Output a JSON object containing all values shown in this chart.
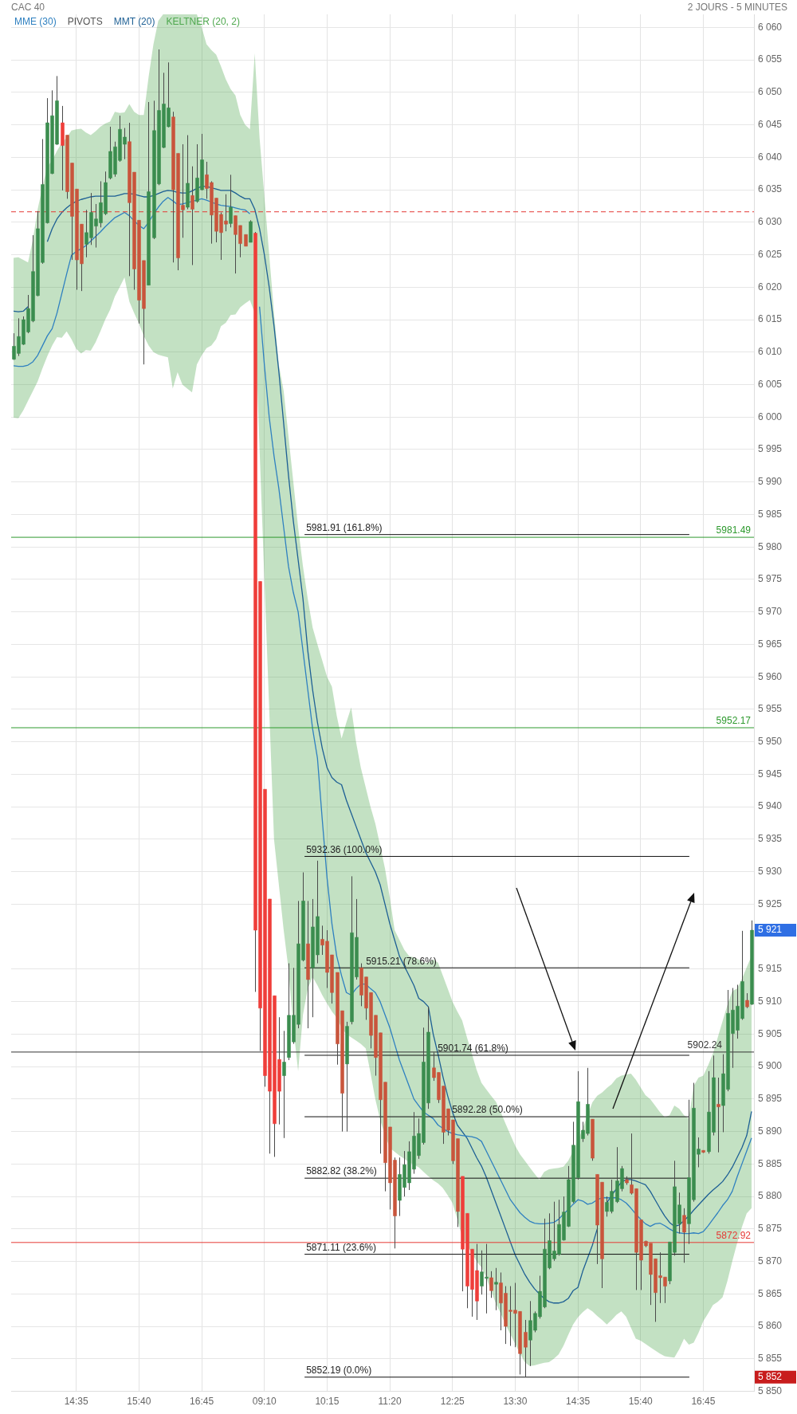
{
  "chart_data": {
    "type": "candlestick",
    "title": "CAC 40",
    "subtitle": "2 JOURS - 5 MINUTES",
    "categories": [
      null,
      null,
      null,
      null,
      null,
      null,
      null,
      null,
      null,
      null,
      null,
      null,
      null,
      "14:35",
      null,
      null,
      null,
      null,
      null,
      null,
      null,
      null,
      null,
      null,
      null,
      null,
      "15:40",
      null,
      null,
      null,
      null,
      null,
      null,
      null,
      null,
      null,
      null,
      null,
      null,
      "16:45",
      null,
      null,
      null,
      null,
      null,
      null,
      null,
      null,
      null,
      null,
      null,
      null,
      "09:10",
      null,
      null,
      null,
      null,
      null,
      null,
      null,
      null,
      null,
      null,
      null,
      null,
      "10:15",
      null,
      null,
      null,
      null,
      null,
      null,
      null,
      null,
      null,
      null,
      null,
      null,
      "11:20",
      null,
      null,
      null,
      null,
      null,
      null,
      null,
      null,
      null,
      null,
      null,
      null,
      "12:25",
      null,
      null,
      null,
      null,
      null,
      null,
      null,
      null,
      null,
      null,
      null,
      null,
      "13:30",
      null,
      null,
      null,
      null,
      null,
      null,
      null,
      null,
      null,
      null,
      null,
      null,
      "14:35",
      null,
      null,
      null,
      null,
      null,
      null,
      null,
      null,
      null,
      null,
      null,
      null,
      "15:40",
      null,
      null,
      null,
      null,
      null,
      null,
      null,
      null,
      null,
      null,
      null,
      null,
      "16:45",
      null,
      null,
      null,
      null,
      null,
      null,
      null,
      null,
      null,
      null
    ],
    "ohlc": [
      [
        6008.9,
        6012.9,
        6008.8,
        6010.9
      ],
      [
        6009.8,
        6015.2,
        6009.4,
        6012.4
      ],
      [
        6011.2,
        6015.5,
        6011.1,
        6015.0
      ],
      [
        6013.1,
        6018.8,
        6012.9,
        6016.7
      ],
      [
        6014.8,
        6028.0,
        6014.6,
        6022.4
      ],
      [
        6018.7,
        6031.7,
        6018.6,
        6029.0
      ],
      [
        6023.8,
        6042.8,
        6023.6,
        6035.8
      ],
      [
        6029.9,
        6049.1,
        6029.8,
        6045.3
      ],
      [
        6037.5,
        6050.3,
        6037.4,
        6046.4
      ],
      [
        6042.0,
        6052.5,
        6041.9,
        6048.7
      ],
      [
        6045.3,
        6047.9,
        6034.9,
        6041.8
      ],
      [
        6043.4,
        6043.4,
        6033.6,
        6034.7
      ],
      [
        6039.1,
        6039.1,
        6024.2,
        6030.9
      ],
      [
        6035.1,
        6035.1,
        6019.6,
        6024.2
      ],
      [
        6029.7,
        6029.7,
        6019.4,
        6023.6
      ],
      [
        6026.6,
        6031.9,
        6024.6,
        6028.4
      ],
      [
        6027.6,
        6034.5,
        6026.5,
        6031.5
      ],
      [
        6029.4,
        6032.8,
        6026.1,
        6030.5
      ],
      [
        6029.9,
        6036.3,
        6029.2,
        6033.0
      ],
      [
        6031.3,
        6037.8,
        6031.1,
        6036.1
      ],
      [
        6036.8,
        6044.7,
        6036.6,
        6040.9
      ],
      [
        6037.4,
        6042.4,
        6037.0,
        6041.6
      ],
      [
        6039.5,
        6046.4,
        6039.3,
        6044.3
      ],
      [
        6042.0,
        6044.5,
        6039.7,
        6043.1
      ],
      [
        6042.4,
        6045.3,
        6021.7,
        6033.0
      ],
      [
        6037.7,
        6037.7,
        6019.6,
        6022.8
      ],
      [
        6030.3,
        6030.3,
        6014.4,
        6018.0
      ],
      [
        6024.1,
        6024.1,
        6008.1,
        6016.7
      ],
      [
        6020.3,
        6048.5,
        6020.3,
        6034.7
      ],
      [
        6027.6,
        6048.7,
        6027.4,
        6044.1
      ],
      [
        6035.9,
        6056.6,
        6035.7,
        6047.2
      ],
      [
        6041.5,
        6053.0,
        6041.4,
        6048.2
      ],
      [
        6044.7,
        6054.6,
        6044.6,
        6047.6
      ],
      [
        6046.2,
        6047.0,
        6023.8,
        6035.0
      ],
      [
        6040.6,
        6040.6,
        6022.6,
        6024.5
      ],
      [
        6032.6,
        6042.0,
        6027.6,
        6031.9
      ],
      [
        6032.3,
        6043.4,
        6032.0,
        6036.0
      ],
      [
        6034.1,
        6038.6,
        6023.4,
        6032.0
      ],
      [
        6033.2,
        6042.0,
        6033.0,
        6036.8
      ],
      [
        6035.0,
        6043.6,
        6034.9,
        6039.6
      ],
      [
        6037.3,
        6039.3,
        6033.6,
        6035.2
      ],
      [
        6036.1,
        6036.3,
        6026.7,
        6031.1
      ],
      [
        6033.7,
        6033.7,
        6026.9,
        6028.6
      ],
      [
        6031.2,
        6031.5,
        6024.2,
        6028.4
      ],
      [
        6030.2,
        6034.3,
        6028.6,
        6029.7
      ],
      [
        6029.8,
        6037.3,
        6029.2,
        6032.3
      ],
      [
        6031.0,
        6031.0,
        6022.1,
        6028.1
      ],
      [
        6029.5,
        6029.5,
        6024.6,
        6026.7
      ],
      [
        6028.1,
        6028.1,
        6026.3,
        6026.3
      ],
      [
        6026.9,
        6030.3,
        6026.9,
        6030.1
      ],
      [
        6028.3,
        6028.5,
        5911.5,
        5921.0
      ],
      [
        5974.7,
        5974.7,
        5902.4,
        5909.0
      ],
      [
        5942.7,
        5942.7,
        5896.9,
        5898.6
      ],
      [
        5925.8,
        5925.8,
        5886.6,
        5896.2
      ],
      [
        5910.9,
        5910.9,
        5886.1,
        5891.2
      ],
      [
        5901.1,
        5907.6,
        5891.1,
        5896.2
      ],
      [
        5898.6,
        5905.5,
        5889.0,
        5900.7
      ],
      [
        5901.4,
        5915.9,
        5901.0,
        5907.9
      ],
      [
        5903.8,
        5915.2,
        5903.5,
        5907.9
      ],
      [
        5906.5,
        5925.5,
        5905.9,
        5918.9
      ],
      [
        5916.4,
        5929.9,
        5916.2,
        5925.5
      ],
      [
        5918.9,
        5925.5,
        5905.9,
        5913.4
      ],
      [
        5915.2,
        5925.8,
        5907.6,
        5921.5
      ],
      [
        5917.2,
        5931.7,
        5915.9,
        5923.1
      ],
      [
        5919.6,
        5921.7,
        5917.2,
        5918.7
      ],
      [
        5919.3,
        5921.0,
        5912.1,
        5914.5
      ],
      [
        5917.2,
        5917.2,
        5909.7,
        5911.4
      ],
      [
        5914.5,
        5914.5,
        5900.3,
        5903.5
      ],
      [
        5908.6,
        5908.6,
        5890.0,
        5895.9
      ],
      [
        5900.4,
        5906.9,
        5890.0,
        5906.2
      ],
      [
        5906.9,
        5929.3,
        5906.5,
        5920.6
      ],
      [
        5913.8,
        5925.8,
        5913.4,
        5919.9
      ],
      [
        5915.2,
        5915.9,
        5909.3,
        5911.0
      ],
      [
        5913.8,
        5913.8,
        5907.2,
        5909.0
      ],
      [
        5911.4,
        5911.4,
        5902.8,
        5904.8
      ],
      [
        5907.9,
        5907.9,
        5898.6,
        5901.4
      ],
      [
        5905.2,
        5905.2,
        5886.6,
        5894.9
      ],
      [
        5897.6,
        5897.6,
        5880.8,
        5885.2
      ],
      [
        5890.7,
        5890.7,
        5878.0,
        5882.1
      ],
      [
        5885.6,
        5886.0,
        5872.0,
        5877.0
      ],
      [
        5879.4,
        5886.0,
        5877.0,
        5883.4
      ],
      [
        5881.4,
        5887.0,
        5880.0,
        5884.9
      ],
      [
        5882.1,
        5888.5,
        5881.0,
        5886.9
      ],
      [
        5884.2,
        5893.0,
        5883.5,
        5889.3
      ],
      [
        5886.3,
        5892.0,
        5885.8,
        5889.7
      ],
      [
        5888.3,
        5906.0,
        5888.0,
        5900.7
      ],
      [
        5894.4,
        5909.2,
        5893.5,
        5905.3
      ],
      [
        5899.8,
        5902.2,
        5897.8,
        5898.3
      ],
      [
        5899.1,
        5899.1,
        5894.4,
        5894.9
      ],
      [
        5897.0,
        5897.0,
        5888.1,
        5889.9
      ],
      [
        5893.5,
        5893.5,
        5889.4,
        5890.2
      ],
      [
        5891.8,
        5891.8,
        5885.0,
        5885.5
      ],
      [
        5888.9,
        5888.9,
        5875.3,
        5877.7
      ],
      [
        5883.1,
        5883.1,
        5865.4,
        5871.9
      ],
      [
        5877.4,
        5877.4,
        5862.8,
        5866.2
      ],
      [
        5871.9,
        5871.9,
        5861.5,
        5865.7
      ],
      [
        5868.6,
        5872.7,
        5861.0,
        5863.9
      ],
      [
        5866.2,
        5871.7,
        5864.9,
        5868.4
      ],
      [
        5867.4,
        5872.7,
        5862.0,
        5867.6
      ],
      [
        5867.5,
        5868.5,
        5864.4,
        5865.5
      ],
      [
        5866.5,
        5869.0,
        5862.5,
        5866.8
      ],
      [
        5866.7,
        5868.3,
        5859.4,
        5863.6
      ],
      [
        5865.1,
        5866.2,
        5857.3,
        5860.0
      ],
      [
        5862.5,
        5866.2,
        5857.0,
        5862.3
      ],
      [
        5862.5,
        5866.7,
        5856.8,
        5862.0
      ],
      [
        5862.3,
        5862.3,
        5852.6,
        5855.8
      ],
      [
        5859.1,
        5861.0,
        5852.19,
        5856.8
      ],
      [
        5857.9,
        5863.9,
        5853.9,
        5860.9
      ],
      [
        5859.4,
        5862.3,
        5859.1,
        5862.0
      ],
      [
        5861.5,
        5867.8,
        5861.2,
        5865.4
      ],
      [
        5863.0,
        5876.6,
        5862.8,
        5871.9
      ],
      [
        5869.0,
        5877.4,
        5868.8,
        5873.2
      ],
      [
        5870.4,
        5879.2,
        5870.1,
        5871.6
      ],
      [
        5871.1,
        5879.5,
        5870.9,
        5875.7
      ],
      [
        5873.3,
        5880.0,
        5873.2,
        5877.6
      ],
      [
        5875.4,
        5884.7,
        5875.3,
        5882.6
      ],
      [
        5879.2,
        5891.5,
        5879.0,
        5887.9
      ],
      [
        5882.9,
        5899.3,
        5882.6,
        5894.6
      ],
      [
        5888.9,
        5891.5,
        5888.4,
        5890.2
      ],
      [
        5889.7,
        5899.8,
        5889.4,
        5894.2
      ],
      [
        5891.9,
        5891.9,
        5885.5,
        5885.9
      ],
      [
        5883.4,
        5883.4,
        5869.6,
        5875.6
      ],
      [
        5882.2,
        5882.2,
        5865.9,
        5870.4
      ],
      [
        5877.7,
        5880.0,
        5876.9,
        5879.1
      ],
      [
        5877.7,
        5882.6,
        5877.4,
        5880.8
      ],
      [
        5879.2,
        5887.6,
        5879.0,
        5882.4
      ],
      [
        5881.2,
        5884.7,
        5880.8,
        5884.3
      ],
      [
        5882.6,
        5883.1,
        5881.8,
        5882.1
      ],
      [
        5881.8,
        5889.7,
        5880.3,
        5880.5
      ],
      [
        5881.2,
        5881.2,
        5865.6,
        5871.4
      ],
      [
        5876.4,
        5876.4,
        5865.6,
        5870.2
      ],
      [
        5873.1,
        5873.2,
        5872.2,
        5872.4
      ],
      [
        5872.8,
        5872.8,
        5863.3,
        5868.0
      ],
      [
        5870.4,
        5870.4,
        5860.7,
        5865.2
      ],
      [
        5867.8,
        5871.4,
        5863.6,
        5867.5
      ],
      [
        5867.6,
        5867.6,
        5863.6,
        5866.2
      ],
      [
        5867.0,
        5873.0,
        5866.5,
        5873.0
      ],
      [
        5871.4,
        5885.5,
        5870.9,
        5881.5
      ],
      [
        5875.8,
        5880.6,
        5874.3,
        5878.7
      ],
      [
        5877.1,
        5878.2,
        5869.8,
        5874.5
      ],
      [
        5875.8,
        5894.9,
        5872.7,
        5882.9
      ],
      [
        5879.5,
        5897.5,
        5879.2,
        5893.6
      ],
      [
        5886.5,
        5889.1,
        5884.5,
        5887.3
      ],
      [
        5887.1,
        5887.1,
        5886.7,
        5886.8
      ],
      [
        5886.9,
        5899.3,
        5886.6,
        5893.0
      ],
      [
        5889.9,
        5901.7,
        5889.4,
        5898.3
      ],
      [
        5894.2,
        5898.3,
        5886.8,
        5893.8
      ],
      [
        5894.0,
        5901.9,
        5889.9,
        5898.9
      ],
      [
        5896.5,
        5911.8,
        5896.2,
        5908.2
      ],
      [
        5905.1,
        5912.1,
        5899.8,
        5908.7
      ],
      [
        5905.6,
        5912.6,
        5904.3,
        5909.3
      ],
      [
        5907.4,
        5920.9,
        5907.2,
        5913.1
      ],
      [
        5910.2,
        5911.3,
        5909.0,
        5909.2
      ],
      [
        5909.6,
        5922.5,
        5909.5,
        5921.0
      ]
    ],
    "colors": [
      "#3b8d4f",
      "#3b8d4f",
      "#3b8d4f",
      "#3b8d4f",
      "#3b8d4f",
      "#3b8d4f",
      "#3b8d4f",
      "#3b8d4f",
      "#3b8d4f",
      "#3b8d4f",
      "#ef3e3a",
      "#c9553c",
      "#c9553c",
      "#c9553c",
      "#c9553c",
      "#3b8d4f",
      "#3b8d4f",
      "#3b8d4f",
      "#3b8d4f",
      "#3b8d4f",
      "#3b8d4f",
      "#3b8d4f",
      "#3b8d4f",
      "#3b8d4f",
      "#c9553c",
      "#c9553c",
      "#c9553c",
      "#c9553c",
      "#3b8d4f",
      "#3b8d4f",
      "#3b8d4f",
      "#3b8d4f",
      "#3b8d4f",
      "#c9553c",
      "#c9553c",
      "#c9553c",
      "#3b8d4f",
      "#c9553c",
      "#3b8d4f",
      "#3b8d4f",
      "#c9553c",
      "#c9553c",
      "#c9553c",
      "#c9553c",
      "#c9553c",
      "#3b8d4f",
      "#c9553c",
      "#c9553c",
      "#c9553c",
      "#3b8d4f",
      "#ef3e3a",
      "#ef3e3a",
      "#ef3e3a",
      "#ef3e3a",
      "#ef3e3a",
      "#ef3e3a",
      "#3b8d4f",
      "#3b8d4f",
      "#3b8d4f",
      "#3b8d4f",
      "#3b8d4f",
      "#c9553c",
      "#3b8d4f",
      "#3b8d4f",
      "#c9553c",
      "#c9553c",
      "#c9553c",
      "#c9553c",
      "#c9553c",
      "#3b8d4f",
      "#3b8d4f",
      "#3b8d4f",
      "#c9553c",
      "#c9553c",
      "#c9553c",
      "#c9553c",
      "#c9553c",
      "#c9553c",
      "#c9553c",
      "#c9553c",
      "#3b8d4f",
      "#3b8d4f",
      "#3b8d4f",
      "#3b8d4f",
      "#3b8d4f",
      "#3b8d4f",
      "#3b8d4f",
      "#c9553c",
      "#c9553c",
      "#c9553c",
      "#c9553c",
      "#c9553c",
      "#c9553c",
      "#ef3e3a",
      "#ef3e3a",
      "#ef3e3a",
      "#ef3e3a",
      "#3b8d4f",
      "#3b8d4f",
      "#c9553c",
      "#3b8d4f",
      "#c9553c",
      "#c9553c",
      "#c9553c",
      "#c9553c",
      "#c9553c",
      "#c9553c",
      "#3b8d4f",
      "#3b8d4f",
      "#3b8d4f",
      "#3b8d4f",
      "#3b8d4f",
      "#3b8d4f",
      "#3b8d4f",
      "#3b8d4f",
      "#3b8d4f",
      "#3b8d4f",
      "#3b8d4f",
      "#3b8d4f",
      "#3b8d4f",
      "#c9553c",
      "#c9553c",
      "#c9553c",
      "#3b8d4f",
      "#3b8d4f",
      "#3b8d4f",
      "#3b8d4f",
      "#c9553c",
      "#c9553c",
      "#c9553c",
      "#c9553c",
      "#c9553c",
      "#c9553c",
      "#c9553c",
      "#c9553c",
      "#c9553c",
      "#3b8d4f",
      "#3b8d4f",
      "#3b8d4f",
      "#c9553c",
      "#3b8d4f",
      "#3b8d4f",
      "#3b8d4f",
      "#c9553c",
      "#3b8d4f",
      "#3b8d4f",
      "#c9553c",
      "#3b8d4f",
      "#3b8d4f",
      "#3b8d4f",
      "#3b8d4f",
      "#3b8d4f",
      "#c9553c",
      "#3b8d4f"
    ],
    "series": [
      {
        "name": "MME (30)",
        "type": "line",
        "color": "#2f80c0",
        "values": [
          6007.9,
          6007.8,
          6007.8,
          6008.0,
          6008.5,
          6009.5,
          6011,
          6012.5,
          6013.6,
          6016,
          6019,
          6022,
          6024.9,
          6025.5,
          6025.9,
          6026.4,
          6027.1,
          6027.8,
          6028.5,
          6029.3,
          6030.0,
          6030.7,
          6031.1,
          6031.5,
          6031.0,
          6030.2,
          6029.5,
          6029.0,
          6030.0,
          6031.2,
          6032.3,
          6033.2,
          6033.8,
          6033.3,
          6032.7,
          6032.8,
          6033.0,
          6033.2,
          6033.4,
          6033.6,
          6033.4,
          6033.1,
          6032.8,
          6032.6,
          6032.5,
          6032.4,
          6032.2,
          6032.0,
          6031.9,
          6031.3,
          null,
          6017,
          6008,
          6000,
          5994,
          5989,
          5983,
          5977,
          5973,
          5970,
          5964,
          5958,
          5952,
          5947.5,
          5938,
          5929,
          5922,
          5917,
          5914,
          5911.4,
          5911,
          5912,
          5912.7,
          5912.7,
          5912,
          5911.4,
          5910,
          5908,
          5906,
          5903.5,
          5901,
          5899,
          5897,
          5895,
          5894,
          5893,
          5892.5,
          5892,
          5891,
          5890.5,
          5890,
          5889.7,
          5889.5,
          5889.4,
          5889.3,
          5889.2,
          5889,
          5888.5,
          5887,
          5885.5,
          5884,
          5882.5,
          5881,
          5879.5,
          5878.5,
          5877.5,
          5876.8,
          5876.2,
          5875.9,
          5875.8,
          5875.8,
          5875.9,
          5876,
          5876.5,
          5877.3,
          5878,
          5878.8,
          5879.5,
          5879.3,
          5878.8,
          5879,
          5879.5,
          5879.8,
          5879.8,
          5879.8,
          5879.8,
          5879.5,
          5879,
          5878.2,
          5877.3,
          5876.5,
          5875.8,
          5875.4,
          5875.8,
          5875.9,
          5875.5,
          5875,
          5874.6,
          5874.4,
          5874.3,
          5874.3,
          5874.4,
          5874.3,
          5874.6,
          5875.5,
          5876.5,
          5877.5,
          5878.6,
          5879.5,
          5880.8,
          5883,
          5885,
          5887,
          5889
        ]
      },
      {
        "name": "MMT (20)",
        "type": "line",
        "color": "#1d5f94",
        "values": [
          6016.3,
          6016.2,
          6016.3,
          6017,
          null,
          null,
          null,
          6027,
          6029,
          6030.5,
          6031.5,
          6032.2,
          6032.8,
          6033.2,
          6033.5,
          6033.7,
          6033.9,
          6034,
          6034,
          6034,
          6034,
          6034,
          6034.2,
          6034.4,
          6034.4,
          6034.3,
          6034.1,
          6033.9,
          6033.9,
          6034.1,
          6034.4,
          6034.7,
          6034.9,
          6034.8,
          6034.6,
          6034.5,
          6034.5,
          6034.8,
          6035.2,
          6035.5,
          6035.5,
          6035.3,
          6035.1,
          6034.9,
          6034.9,
          6034.9,
          6034.5,
          6034,
          6033.6,
          6033.6,
          6032,
          6029,
          6025,
          6020,
          6014,
          6007,
          5999,
          5991,
          5984,
          5978,
          5972,
          5964,
          5958,
          5953,
          5949,
          5946,
          5944.5,
          5943.8,
          5943.4,
          5941,
          5939,
          5937,
          5935,
          5933,
          5931.5,
          5930,
          5928,
          5925,
          5922,
          5919.5,
          5917,
          5915.5,
          5914,
          5912.5,
          5910.5,
          5910,
          5909.2,
          5905,
          5901.9,
          5898.5,
          5895.5,
          5893,
          5891,
          5890,
          5889,
          5887.5,
          5886,
          5884.7,
          5883,
          5881,
          5879,
          5877,
          5875,
          5873,
          5871,
          5869.5,
          5868,
          5866.8,
          5865.8,
          5865,
          5864.3,
          5863.8,
          5863.6,
          5863.6,
          5863.8,
          5864.3,
          5865.5,
          5866,
          5868.5,
          5870.5,
          5872.5,
          5875,
          null,
          5879,
          5880.2,
          5881.2,
          5882.2,
          5882.6,
          5882.6,
          5882.4,
          5882.1,
          5881.8,
          5880.8,
          5879.5,
          5878.2,
          5877,
          5876,
          5875.4,
          5875.6,
          5876.3,
          5877,
          5877.9,
          5878.7,
          5879.5,
          5880.3,
          5881,
          5881.6,
          5882.3,
          5883.3,
          5884.5,
          5886,
          5887.5,
          5889.4,
          5893.1
        ]
      },
      {
        "name": "KELTNER (20, 2)",
        "type": "line",
        "color": "#4fa84f",
        "values": [
          null,
          null,
          null,
          null,
          null,
          null,
          null,
          null,
          null,
          null,
          null,
          null,
          null,
          null,
          null,
          null,
          null,
          null,
          null,
          null,
          null,
          null,
          null,
          null,
          null,
          null,
          null,
          null,
          null,
          null,
          null,
          null,
          null,
          null,
          null,
          null,
          null,
          null,
          null,
          null,
          null,
          null,
          null,
          null,
          null,
          null,
          null,
          null,
          null,
          null,
          null,
          null,
          null,
          null,
          null,
          null,
          null,
          null,
          null,
          null,
          null,
          null,
          null,
          null,
          null,
          null,
          null,
          null,
          null,
          null,
          null,
          null,
          null,
          null,
          null,
          null,
          null,
          null,
          null,
          null,
          null,
          null,
          null,
          null,
          null,
          null,
          null,
          null,
          null,
          null,
          null,
          null,
          null,
          null,
          null,
          null,
          null,
          null,
          null,
          null,
          null,
          null,
          null,
          null,
          null,
          null,
          null,
          null,
          null,
          null,
          null,
          null,
          null,
          null,
          null,
          null,
          null,
          null,
          null,
          null,
          null,
          null,
          null,
          null,
          null,
          null,
          null,
          null,
          null,
          null,
          null,
          null,
          null,
          null,
          null,
          null,
          null,
          null,
          null,
          null,
          null,
          null,
          null,
          null,
          null,
          null,
          null,
          null,
          null,
          null,
          null,
          null,
          null,
          null
        ],
        "upper": [
          6024.5,
          6024.6,
          6024.2,
          6023.8,
          6027.3,
          6032,
          6035.5,
          6038.5,
          6039.5,
          6041,
          6042.2,
          6043,
          6044.1,
          6044.3,
          6044.4,
          6043.8,
          6043.4,
          6044,
          6044.7,
          6045.2,
          6045.5,
          6047,
          6046.8,
          6046.9,
          6048.2,
          6047,
          6046.5,
          6046.5,
          6052.4,
          6057.4,
          6061,
          6062,
          6062,
          6062,
          6062,
          6062,
          6062,
          6062,
          6062,
          6060,
          6057.4,
          6056.5,
          6055.8,
          6054,
          6052,
          6050.5,
          6049.5,
          6046.5,
          6045,
          6044.3,
          6056,
          6043,
          6034,
          6025,
          6016,
          6008,
          6004,
          5997,
          5990,
          5983,
          5977,
          5972,
          5967.6,
          5965,
          5962.5,
          5960,
          5958.5,
          5954,
          5950.5,
          5953,
          5955.3,
          5950,
          5946,
          5943,
          5940,
          5937.4,
          5934,
          5930.5,
          5926,
          5921,
          5919.5,
          5918,
          5917,
          5916.8,
          5916.5,
          5916,
          5916,
          5916.5,
          5916,
          5914,
          5912,
          5910,
          5908.5,
          5907.1,
          5904.5,
          5902,
          5899.5,
          5897.5,
          5896.5,
          5895.5,
          5894.6,
          5893,
          5891.2,
          5889.5,
          5887.8,
          5886.5,
          5885.5,
          5884.5,
          5883.5,
          5882.6,
          5883.8,
          5884.2,
          5884.3,
          5884.4,
          5884.6,
          5885.5,
          5887,
          5888.5,
          5890.5,
          5892.5,
          5894.5,
          5895.5,
          5896,
          5896.7,
          5897.3,
          5898.2,
          5898.6,
          5898.8,
          5898.9,
          5898,
          5896.8,
          5895.6,
          5895,
          5894,
          5893,
          5892.2,
          5892.5,
          5894,
          5893.5,
          5892.5,
          5892,
          5897,
          5898.3,
          5898.6,
          5900.2,
          5902,
          5904.5,
          5907,
          5909.5,
          5911.6,
          5912,
          5913.5,
          5915.3,
          5917
        ],
        "lower": [
          5999.9,
          5999.8,
          6001,
          6002.5,
          6004,
          6005.5,
          6007.5,
          6009.4,
          6011,
          6012.3,
          6012.2,
          6013.2,
          6012,
          6010.5,
          6009.8,
          6010.3,
          6010.2,
          6011.5,
          6013.2,
          6015,
          6016.5,
          6018.6,
          6020,
          6021.5,
          6017.8,
          6016,
          6014.4,
          6012.5,
          6011,
          6010,
          6009.6,
          6009.4,
          6009.2,
          6004.4,
          6006.9,
          6005,
          6004.4,
          6003.8,
          6008.1,
          6009.5,
          6010.6,
          6011,
          6012,
          6014,
          6014.5,
          6015.7,
          6015.8,
          6016.9,
          6017.5,
          6018,
          6016,
          5995,
          5975,
          5955,
          5935,
          5928,
          5921,
          5915,
          5906,
          5899.3,
          5908,
          5912,
          5913.8,
          5912.5,
          5911,
          5909.7,
          5908.5,
          5907.5,
          5906,
          5905,
          5904.5,
          5904,
          5903.5,
          5902.8,
          5899,
          5895,
          5891.8,
          5889.5,
          5887.5,
          5886.9,
          5886.3,
          5885.8,
          5885.3,
          5884.9,
          5884.5,
          5883.8,
          5883.1,
          5882.5,
          5882,
          5881.3,
          5880.2,
          5879,
          5876.5,
          5873.8,
          5872.5,
          5871.3,
          5870,
          5869.1,
          5867.5,
          5865.5,
          5863.5,
          5862,
          5860.3,
          5858.8,
          5857.3,
          5855.8,
          5854.5,
          5853.9,
          5854,
          5854.2,
          5854.4,
          5854.5,
          5855,
          5855.7,
          5857,
          5858.7,
          5860.3,
          5861.4,
          5862.2,
          5862.8,
          5862.3,
          5861.6,
          5861,
          5860.3,
          5861,
          5861.8,
          5862.3,
          5861.5,
          5859.8,
          5858.1,
          5857.8,
          5857.3,
          5856.8,
          5856.3,
          5855.8,
          5855.4,
          5855.3,
          5855.2,
          5856.5,
          5858.1,
          5857.2,
          5857.5,
          5859,
          5860.8,
          5862,
          5863.3,
          5863.8,
          5864.5,
          5867,
          5870,
          5872.8,
          5875.3,
          5877.4,
          5878.2
        ]
      }
    ],
    "ylim": [
      5850,
      6062
    ],
    "yticks": [
      {
        "value": 5850,
        "label": "5 850"
      },
      {
        "value": 5852.19,
        "label": "5 852"
      },
      {
        "value": 5855,
        "label": "5 855"
      },
      {
        "value": 5860,
        "label": "5 860"
      },
      {
        "value": 5865,
        "label": "5 865"
      },
      {
        "value": 5870,
        "label": "5 870"
      },
      {
        "value": 5875,
        "label": "5 875"
      },
      {
        "value": 5880,
        "label": "5 880"
      },
      {
        "value": 5885,
        "label": "5 885"
      },
      {
        "value": 5890,
        "label": "5 890"
      },
      {
        "value": 5895,
        "label": "5 895"
      },
      {
        "value": 5900,
        "label": "5 900"
      },
      {
        "value": 5905,
        "label": "5 905"
      },
      {
        "value": 5910,
        "label": "5 910"
      },
      {
        "value": 5915,
        "label": "5 915"
      },
      {
        "value": 5921,
        "label": "5 921"
      },
      {
        "value": 5925,
        "label": "5 925"
      },
      {
        "value": 5930,
        "label": "5 930"
      },
      {
        "value": 5935,
        "label": "5 935"
      },
      {
        "value": 5940,
        "label": "5 940"
      },
      {
        "value": 5945,
        "label": "5 945"
      },
      {
        "value": 5950,
        "label": "5 950"
      },
      {
        "value": 5955,
        "label": "5 955"
      },
      {
        "value": 5960,
        "label": "5 960"
      },
      {
        "value": 5965,
        "label": "5 965"
      },
      {
        "value": 5970,
        "label": "5 970"
      },
      {
        "value": 5975,
        "label": "5 975"
      },
      {
        "value": 5980,
        "label": "5 980"
      },
      {
        "value": 5985,
        "label": "5 985"
      },
      {
        "value": 5990,
        "label": "5 990"
      },
      {
        "value": 5995,
        "label": "5 995"
      },
      {
        "value": 6000,
        "label": "6 000"
      },
      {
        "value": 6005,
        "label": "6 005"
      },
      {
        "value": 6010,
        "label": "6 010"
      },
      {
        "value": 6015,
        "label": "6 015"
      },
      {
        "value": 6020,
        "label": "6 020"
      },
      {
        "value": 6025,
        "label": "6 025"
      },
      {
        "value": 6030,
        "label": "6 030"
      },
      {
        "value": 6035,
        "label": "6 035"
      },
      {
        "value": 6040,
        "label": "6 040"
      },
      {
        "value": 6045,
        "label": "6 045"
      },
      {
        "value": 6050,
        "label": "6 050"
      },
      {
        "value": 6055,
        "label": "6 055"
      },
      {
        "value": 6060,
        "label": "6 060"
      }
    ],
    "grid": true,
    "legend": "top left",
    "ref_lines": [
      {
        "axis": "y",
        "value": 6031.6,
        "color": "#e53935",
        "line_style": "dashed"
      },
      {
        "axis": "y",
        "value": 5981.49,
        "label": "5981.49",
        "color": "#2e9a2e"
      },
      {
        "axis": "y",
        "value": 5952.17,
        "label": "5952.17",
        "color": "#2e9a2e"
      },
      {
        "axis": "y",
        "value": 5902.24,
        "label": "5902.24",
        "color": "#333333"
      },
      {
        "axis": "y",
        "value": 5872.92,
        "label": "5872.92",
        "color": "#e53935"
      },
      {
        "axis": "y",
        "value": 5981.91,
        "label": "5981.91 (161.8%)"
      },
      {
        "axis": "y",
        "value": 5932.36,
        "label": "5932.36 (100.0%)"
      },
      {
        "axis": "y",
        "value": 5915.21,
        "label": "5915.21 (78.6%)"
      },
      {
        "axis": "y",
        "value": 5901.74,
        "label": "5901.74 (61.8%)"
      },
      {
        "axis": "y",
        "value": 5892.28,
        "label": "5892.28 (50.0%)"
      },
      {
        "axis": "y",
        "value": 5882.82,
        "label": "5882.82 (38.2%)"
      },
      {
        "axis": "y",
        "value": 5871.11,
        "label": "5871.11 (23.6%)"
      },
      {
        "axis": "y",
        "value": 5852.19,
        "label": "5852.19 (0.0%)"
      }
    ],
    "annotations": [
      "PIVOTS"
    ]
  }
}
